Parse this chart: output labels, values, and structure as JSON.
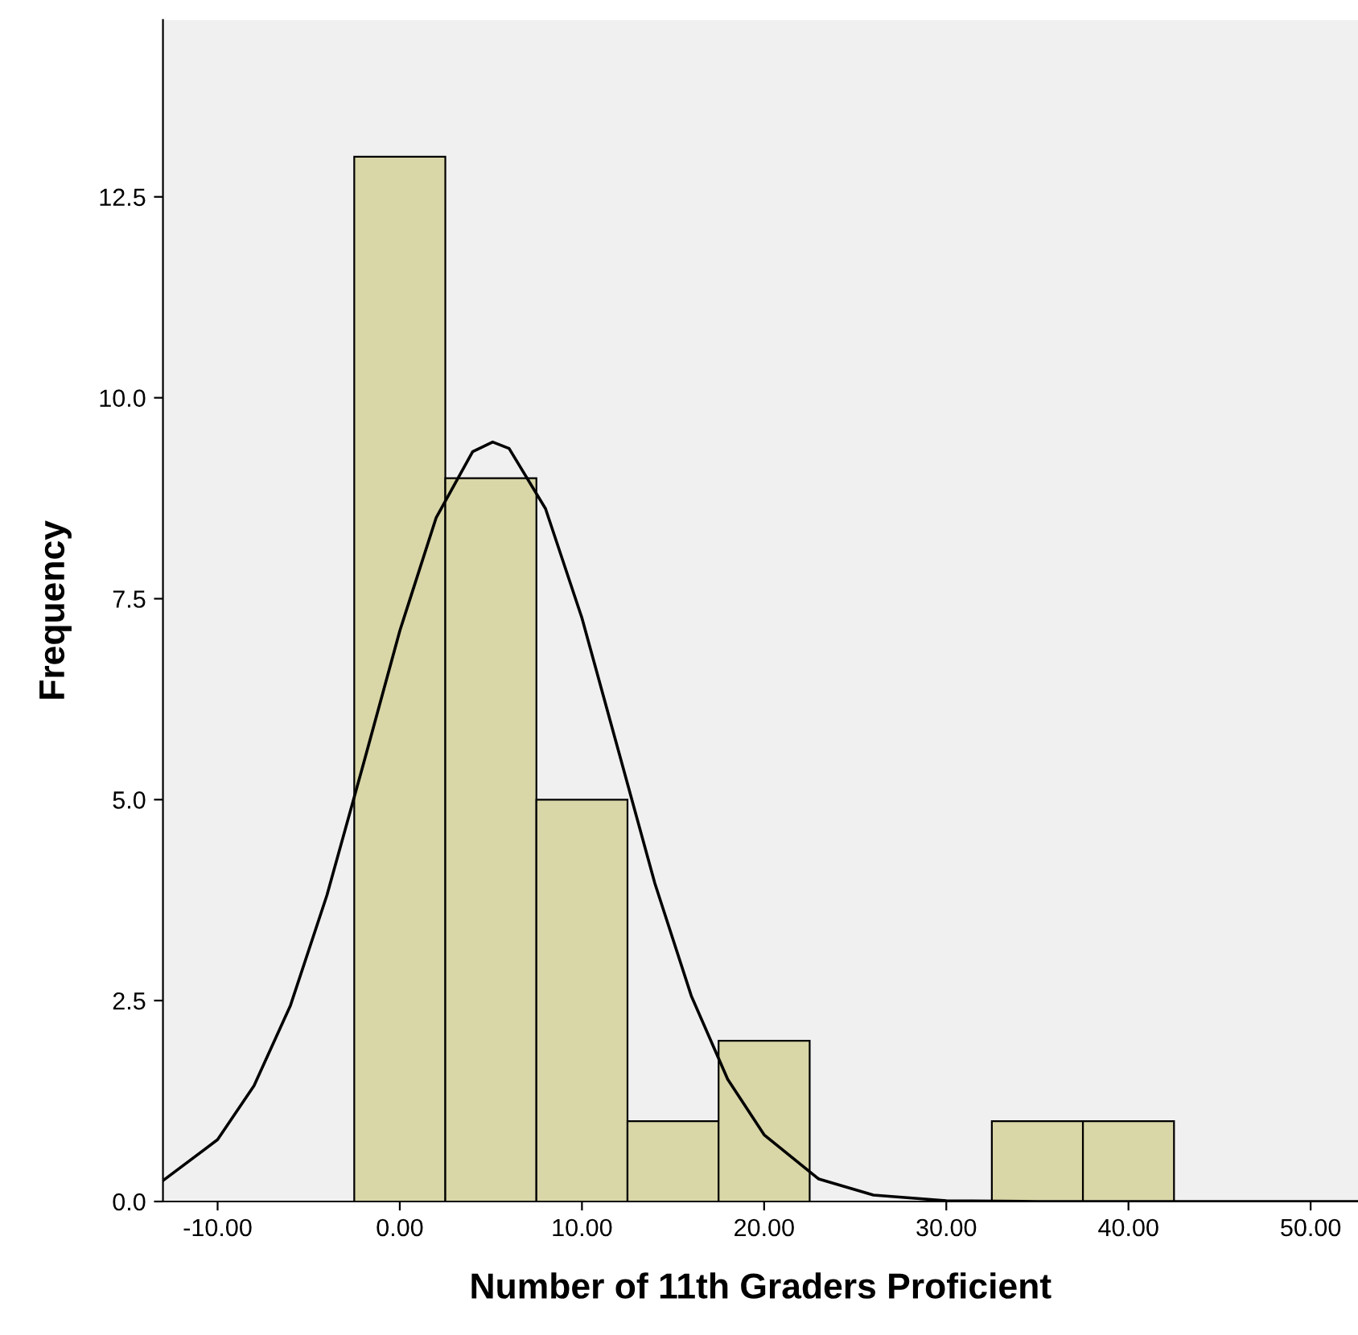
{
  "chart_data": {
    "type": "histogram",
    "xlabel": "Number of 11th Graders Proficient",
    "ylabel": "Frequency",
    "bins": [
      -2.5,
      2.5,
      7.5,
      12.5,
      17.5,
      22.5,
      27.5,
      32.5,
      37.5,
      42.5
    ],
    "values": [
      13,
      9,
      5,
      1,
      2,
      0,
      0,
      1,
      1
    ],
    "color": "#d9d6a7",
    "series": [
      {
        "type": "line",
        "color": "#000000",
        "x": [
          -13,
          -10,
          -8,
          -6,
          -4,
          -2,
          0,
          2,
          4,
          5.1,
          6,
          8,
          10,
          12,
          14,
          16,
          18,
          20,
          23,
          26,
          30,
          35,
          52.6
        ],
        "values": [
          0.26,
          0.77,
          1.44,
          2.44,
          3.81,
          5.44,
          7.1,
          8.51,
          9.33,
          9.45,
          9.37,
          8.62,
          7.26,
          5.61,
          3.96,
          2.56,
          1.52,
          0.83,
          0.28,
          0.08,
          0.01,
          0,
          0
        ]
      }
    ],
    "xlim": [
      -13,
      52.6
    ],
    "ylim": [
      0,
      14.7
    ],
    "xticks": [
      {
        "value": -10,
        "label": "-10.00"
      },
      {
        "value": 0,
        "label": "0.00"
      },
      {
        "value": 10,
        "label": "10.00"
      },
      {
        "value": 20,
        "label": "20.00"
      },
      {
        "value": 30,
        "label": "30.00"
      },
      {
        "value": 40,
        "label": "40.00"
      },
      {
        "value": 50,
        "label": "50.00"
      }
    ],
    "yticks": [
      {
        "value": 0,
        "label": "0.0"
      },
      {
        "value": 2.5,
        "label": "2.5"
      },
      {
        "value": 5,
        "label": "5.0"
      },
      {
        "value": 7.5,
        "label": "7.5"
      },
      {
        "value": 10,
        "label": "10.0"
      },
      {
        "value": 12.5,
        "label": "12.5"
      }
    ]
  }
}
